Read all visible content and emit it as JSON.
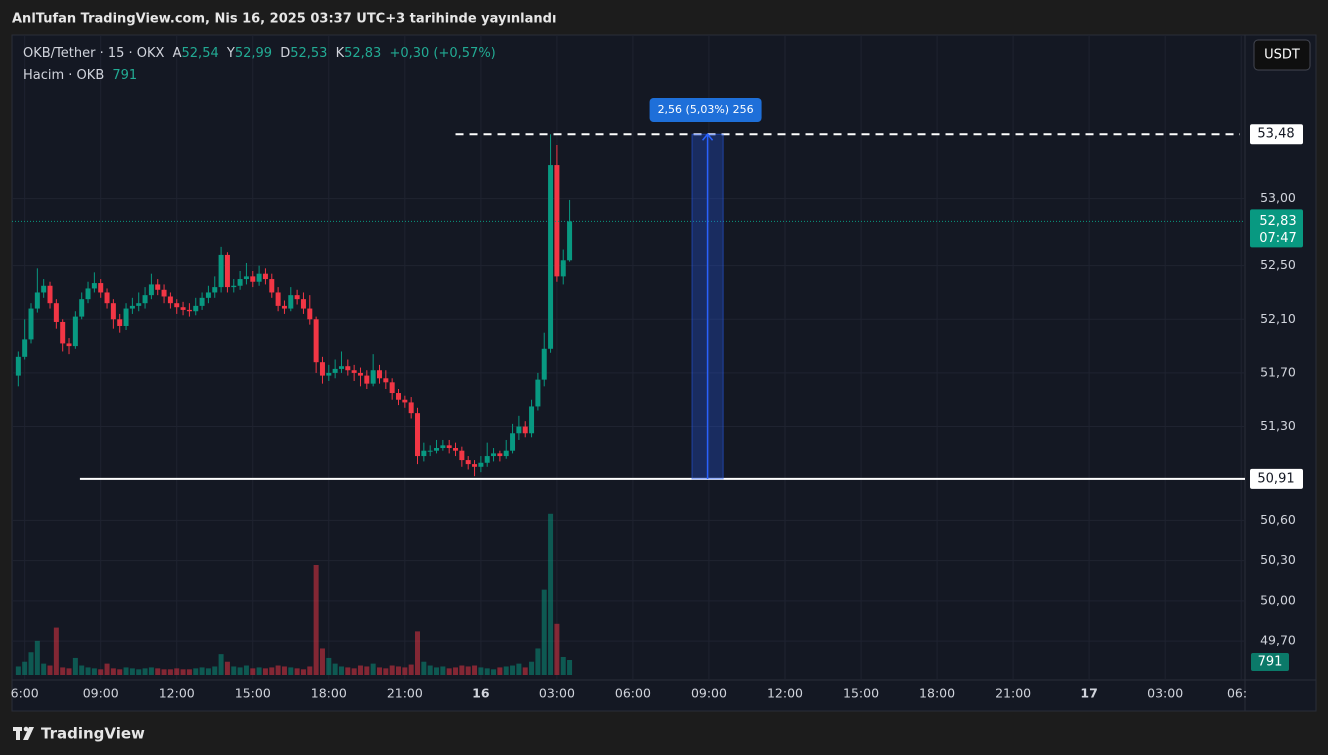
{
  "header": "AnlTufan TradingView.com, Nis 16, 2025 03:37 UTC+3 tarihinde yayınlandı",
  "footer": {
    "brand": "TradingView"
  },
  "currency_button": "USDT",
  "chart_data": {
    "type": "candlestick",
    "legend": {
      "symbol": "OKB/Tether · 15 · OKX",
      "fields": [
        {
          "key": "A",
          "value": "52,54"
        },
        {
          "key": "Y",
          "value": "52,99"
        },
        {
          "key": "D",
          "value": "52,53"
        },
        {
          "key": "K",
          "value": "52,83"
        }
      ],
      "change": "+0,30 (+0,57%)",
      "volume_title": "Hacim · OKB",
      "volume_value": "791"
    },
    "x": [
      5.75,
      6,
      6.25,
      6.5,
      6.75,
      7,
      7.25,
      7.5,
      7.75,
      8,
      8.25,
      8.5,
      8.75,
      9,
      9.25,
      9.5,
      9.75,
      10,
      10.25,
      10.5,
      10.75,
      11,
      11.25,
      11.5,
      11.75,
      12,
      12.25,
      12.5,
      12.75,
      13,
      13.25,
      13.5,
      13.75,
      14,
      14.25,
      14.5,
      14.75,
      15,
      15.25,
      15.5,
      15.75,
      16,
      16.25,
      16.5,
      16.75,
      17,
      17.25,
      17.5,
      17.75,
      18,
      18.25,
      18.5,
      18.75,
      19,
      19.25,
      19.5,
      19.75,
      20,
      20.25,
      20.5,
      20.75,
      21,
      21.25,
      21.5,
      21.75,
      22,
      22.25,
      22.5,
      22.75,
      23,
      23.25,
      23.5,
      23.75,
      24,
      24.25,
      24.5,
      24.75,
      25,
      25.25,
      25.5,
      25.75,
      26,
      26.25,
      26.5,
      26.75,
      27,
      27.25,
      27.5
    ],
    "open": [
      51.68,
      51.82,
      51.95,
      52.18,
      52.3,
      52.35,
      52.22,
      52.08,
      51.92,
      51.9,
      52.12,
      52.25,
      52.33,
      52.37,
      52.3,
      52.22,
      52.1,
      52.05,
      52.18,
      52.2,
      52.22,
      52.28,
      52.36,
      52.32,
      52.27,
      52.22,
      52.19,
      52.17,
      52.16,
      52.2,
      52.26,
      52.3,
      52.34,
      52.58,
      52.34,
      52.35,
      52.4,
      52.42,
      52.38,
      52.44,
      52.4,
      52.3,
      52.2,
      52.18,
      52.28,
      52.25,
      52.18,
      52.1,
      51.78,
      51.68,
      51.7,
      51.73,
      51.75,
      51.72,
      51.7,
      51.68,
      51.62,
      51.72,
      51.66,
      51.63,
      51.55,
      51.5,
      51.48,
      51.4,
      51.08,
      51.12,
      51.12,
      51.14,
      51.16,
      51.14,
      51.12,
      51.05,
      51.02,
      51,
      51.03,
      51.08,
      51.1,
      51.08,
      51.12,
      51.25,
      51.3,
      51.25,
      51.45,
      51.65,
      51.88,
      53.25,
      52.42,
      52.54
    ],
    "high": [
      51.86,
      52.1,
      52.22,
      52.48,
      52.4,
      52.38,
      52.25,
      52.1,
      51.96,
      52.16,
      52.3,
      52.38,
      52.45,
      52.4,
      52.33,
      52.25,
      52.14,
      52.22,
      52.26,
      52.3,
      52.34,
      52.44,
      52.4,
      52.36,
      52.3,
      52.25,
      52.23,
      52.22,
      52.26,
      52.3,
      52.35,
      52.42,
      52.64,
      52.6,
      52.4,
      52.46,
      52.52,
      52.46,
      52.5,
      52.48,
      52.44,
      52.34,
      52.24,
      52.34,
      52.32,
      52.3,
      52.28,
      52.12,
      51.82,
      51.76,
      51.8,
      51.86,
      51.8,
      51.76,
      51.74,
      51.72,
      51.84,
      51.76,
      51.72,
      51.66,
      51.58,
      51.53,
      51.52,
      51.44,
      51.18,
      51.16,
      51.2,
      51.2,
      51.2,
      51.18,
      51.15,
      51.08,
      51.05,
      51.08,
      51.18,
      51.14,
      51.12,
      51.2,
      51.32,
      51.38,
      51.34,
      51.5,
      51.7,
      52,
      53.48,
      53.4,
      52.62,
      52.99
    ],
    "low": [
      51.6,
      51.8,
      51.92,
      52.15,
      52.26,
      52.18,
      52.03,
      51.86,
      51.84,
      51.88,
      52.1,
      52.22,
      52.3,
      52.26,
      52.18,
      52.03,
      52,
      52.02,
      52.14,
      52.16,
      52.18,
      52.25,
      52.28,
      52.22,
      52.18,
      52.14,
      52.13,
      52.12,
      52.13,
      52.17,
      52.22,
      52.26,
      52.3,
      52.3,
      52.3,
      52.32,
      52.36,
      52.34,
      52.35,
      52.36,
      52.26,
      52.16,
      52.14,
      52.16,
      52.21,
      52.14,
      52.06,
      51.7,
      51.62,
      51.64,
      51.66,
      51.7,
      51.68,
      51.64,
      51.6,
      51.58,
      51.6,
      51.62,
      51.58,
      51.5,
      51.46,
      51.44,
      51.36,
      51.02,
      51.04,
      51.08,
      51.1,
      51.12,
      51.1,
      51.08,
      51,
      50.98,
      50.93,
      50.96,
      51,
      51.04,
      51.04,
      51.06,
      51.1,
      51.2,
      51.22,
      51.22,
      51.42,
      51.6,
      51.85,
      52.38,
      52.36,
      52.53
    ],
    "close": [
      51.82,
      51.95,
      52.18,
      52.3,
      52.35,
      52.22,
      52.08,
      51.92,
      51.9,
      52.12,
      52.25,
      52.33,
      52.37,
      52.3,
      52.22,
      52.1,
      52.05,
      52.18,
      52.2,
      52.22,
      52.28,
      52.36,
      52.32,
      52.27,
      52.22,
      52.19,
      52.17,
      52.16,
      52.2,
      52.26,
      52.3,
      52.34,
      52.58,
      52.34,
      52.35,
      52.4,
      52.42,
      52.38,
      52.44,
      52.4,
      52.3,
      52.2,
      52.18,
      52.28,
      52.25,
      52.18,
      52.1,
      51.78,
      51.68,
      51.7,
      51.73,
      51.75,
      51.72,
      51.7,
      51.68,
      51.62,
      51.72,
      51.66,
      51.63,
      51.55,
      51.5,
      51.48,
      51.4,
      51.08,
      51.12,
      51.12,
      51.14,
      51.16,
      51.14,
      51.12,
      51.05,
      51.02,
      51,
      51.03,
      51.08,
      51.1,
      51.08,
      51.12,
      51.25,
      51.3,
      51.25,
      51.45,
      51.65,
      51.88,
      53.25,
      52.42,
      52.54,
      52.83
    ],
    "volume": [
      450,
      700,
      1200,
      1800,
      600,
      500,
      2500,
      400,
      350,
      900,
      500,
      400,
      350,
      300,
      600,
      350,
      300,
      400,
      350,
      300,
      350,
      400,
      350,
      300,
      300,
      350,
      300,
      300,
      350,
      400,
      350,
      450,
      1100,
      700,
      450,
      400,
      500,
      350,
      400,
      350,
      400,
      500,
      450,
      400,
      350,
      300,
      450,
      5800,
      1400,
      900,
      600,
      450,
      400,
      350,
      500,
      450,
      600,
      400,
      350,
      500,
      450,
      400,
      550,
      2300,
      700,
      500,
      400,
      450,
      350,
      400,
      500,
      450,
      500,
      400,
      350,
      300,
      400,
      450,
      500,
      600,
      400,
      700,
      1400,
      4500,
      8500,
      2700,
      950,
      791
    ],
    "up_color": "#089981",
    "down_color": "#f23645",
    "xlim": [
      5.5,
      54.15
    ],
    "ylim": [
      49.41,
      54.22
    ],
    "vlim": [
      0,
      11600
    ],
    "xticks": [
      {
        "value": 6,
        "label": "6:00"
      },
      {
        "value": 9,
        "label": "09:00"
      },
      {
        "value": 12,
        "label": "12:00"
      },
      {
        "value": 15,
        "label": "15:00"
      },
      {
        "value": 18,
        "label": "18:00"
      },
      {
        "value": 21,
        "label": "21:00"
      },
      {
        "value": 24,
        "label": "16"
      },
      {
        "value": 27,
        "label": "03:00"
      },
      {
        "value": 30,
        "label": "06:00"
      },
      {
        "value": 33,
        "label": "09:00"
      },
      {
        "value": 36,
        "label": "12:00"
      },
      {
        "value": 39,
        "label": "15:00"
      },
      {
        "value": 42,
        "label": "18:00"
      },
      {
        "value": 45,
        "label": "21:00"
      },
      {
        "value": 48,
        "label": "17"
      },
      {
        "value": 51,
        "label": "03:00"
      },
      {
        "value": 54,
        "label": "06:"
      }
    ],
    "yticks": [
      {
        "value": 53,
        "label": "53,00"
      },
      {
        "value": 52.5,
        "label": "52,50"
      },
      {
        "value": 52.1,
        "label": "52,10"
      },
      {
        "value": 51.7,
        "label": "51,70"
      },
      {
        "value": 51.3,
        "label": "51,30"
      },
      {
        "value": 50.6,
        "label": "50,60"
      },
      {
        "value": 50.3,
        "label": "50,30"
      },
      {
        "value": 50,
        "label": "50,00"
      },
      {
        "value": 49.7,
        "label": "49,70"
      }
    ],
    "grid": true,
    "annotations": {
      "dashed_line": {
        "value": 53.48,
        "label": "53,48",
        "x_start": 23
      },
      "support_line": {
        "value": 50.91,
        "label": "50,91",
        "x_start": 8.18
      },
      "last_price": {
        "value": 52.83,
        "label": "52,83",
        "countdown": "07:47"
      },
      "measure": {
        "from": 50.91,
        "to": 53.48,
        "x_from": 32.33,
        "x_to": 33.56,
        "label": "2,56 (5,03%) 256"
      },
      "volume_label": {
        "value": 791,
        "label": "791"
      }
    }
  }
}
